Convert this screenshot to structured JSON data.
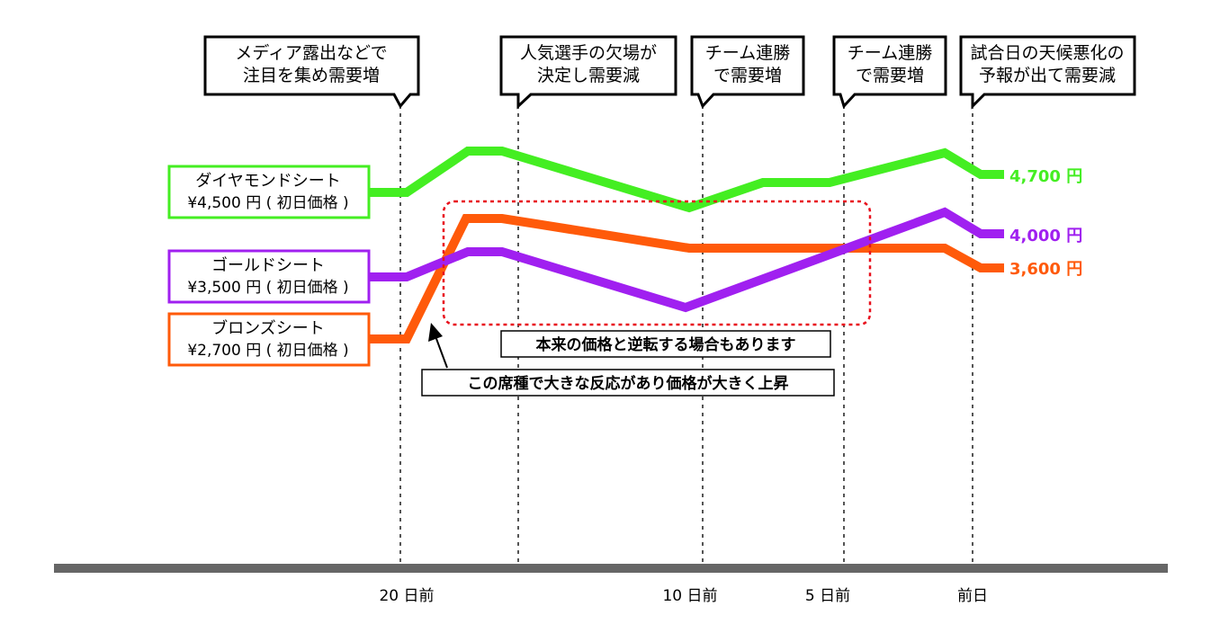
{
  "annotations": [
    {
      "line1": "メディア露出などで",
      "line2": "注目を集め需要増"
    },
    {
      "line1": "人気選手の欠場が",
      "line2": "決定し需要減"
    },
    {
      "line1": "チーム連勝",
      "line2": "で需要増"
    },
    {
      "line1": "チーム連勝",
      "line2": "で需要増"
    },
    {
      "line1": "試合日の天候悪化の",
      "line2": "予報が出て需要減"
    }
  ],
  "seats": [
    {
      "name": "ダイヤモンドシート",
      "price": "¥4,500 円 ( 初日価格 )",
      "end_label": "4,700 円",
      "color": "#44ee22"
    },
    {
      "name": "ゴールドシート",
      "price": "¥3,500 円 ( 初日価格 )",
      "end_label": "4,000 円",
      "color": "#a020f0"
    },
    {
      "name": "ブロンズシート",
      "price": "¥2,700 円 ( 初日価格 )",
      "end_label": "3,600 円",
      "color": "#ff5a0a"
    }
  ],
  "notes": {
    "reversal": "本来の価格と逆転する場合もあります",
    "reaction": "この席種で大きな反応があり価格が大きく上昇"
  },
  "timeline": {
    "ticks": [
      "20 日前",
      "10 日前",
      "5 日前",
      "前日"
    ]
  },
  "colors": {
    "diamond": "#44ee22",
    "gold": "#a020f0",
    "bronze": "#ff5a0a",
    "highlight": "#e8101c",
    "axis": "#666666"
  }
}
